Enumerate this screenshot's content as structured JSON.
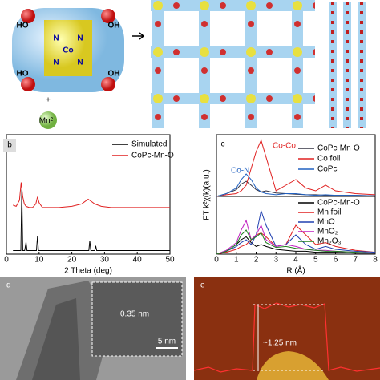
{
  "chart_data": [
    {
      "type": "line",
      "panel_label": "b",
      "xlabel": "2 Theta (deg)",
      "xlim": [
        0,
        50
      ],
      "xticks": [
        0,
        10,
        20,
        30,
        40,
        50
      ],
      "ylim": [
        0,
        100
      ],
      "series": [
        {
          "name": "Simulated",
          "color": "#000000",
          "x": [
            2,
            4.4,
            4.7,
            5.0,
            5.6,
            6.0,
            6.3,
            7,
            9.2,
            9.5,
            9.8,
            12,
            25.2,
            25.5,
            25.8,
            27,
            27.3,
            27.6,
            30,
            50
          ],
          "values": [
            3,
            3,
            54,
            3,
            3,
            10,
            3,
            3,
            3,
            15,
            3,
            3,
            3,
            11,
            3,
            3,
            7,
            3,
            3,
            3
          ]
        },
        {
          "name": "CoPc-Mn-O",
          "color": "#e02020",
          "x": [
            2,
            3,
            4,
            4.5,
            5,
            5.5,
            6,
            7,
            8,
            9,
            9.5,
            10,
            11,
            13,
            16,
            20,
            23,
            25,
            26,
            27,
            29,
            32,
            36,
            40,
            45,
            50
          ],
          "values": [
            41,
            40,
            45,
            60,
            48,
            42,
            40,
            39,
            39,
            42,
            48,
            43,
            39,
            39,
            39,
            40,
            42,
            46,
            44,
            42,
            40,
            39,
            39,
            39,
            39,
            39
          ]
        }
      ]
    },
    {
      "type": "line",
      "panel_label": "c",
      "ylabel": "FT k²χ(k)(a.u.)",
      "xlim": [
        0,
        8
      ],
      "ylim": [
        0,
        110
      ],
      "annotations": [
        {
          "text": "Co-Co",
          "color": "#e02020"
        },
        {
          "text": "Co-N",
          "color": "#2060c0"
        }
      ],
      "series": [
        {
          "name": "CoPc-Mn-O",
          "color": "#333344",
          "x": [
            0,
            0.5,
            1,
            1.25,
            1.5,
            1.75,
            2,
            2.25,
            2.5,
            3,
            3.5,
            4,
            4.5,
            5,
            5.5,
            6,
            7,
            8
          ],
          "values": [
            0,
            5,
            12,
            22,
            27,
            20,
            12,
            8,
            10,
            6,
            5,
            4,
            3,
            3,
            2,
            2,
            2,
            1
          ]
        },
        {
          "name": "Co foil",
          "color": "#e02020",
          "x": [
            0,
            0.5,
            1,
            1.25,
            1.5,
            1.75,
            2,
            2.25,
            2.5,
            3,
            3.5,
            4,
            4.5,
            5,
            5.5,
            6,
            7,
            8
          ],
          "values": [
            0,
            3,
            5,
            10,
            20,
            50,
            80,
            100,
            70,
            10,
            20,
            30,
            15,
            10,
            20,
            10,
            5,
            3
          ]
        },
        {
          "name": "CoPc",
          "color": "#2060c0",
          "x": [
            0,
            0.5,
            1,
            1.25,
            1.5,
            1.75,
            2,
            2.25,
            2.5,
            3,
            3.5,
            4,
            4.5,
            5,
            5.5,
            6,
            7,
            8
          ],
          "values": [
            0,
            5,
            15,
            30,
            40,
            30,
            15,
            8,
            5,
            3,
            5,
            5,
            3,
            2,
            3,
            2,
            2,
            1
          ]
        }
      ]
    },
    {
      "type": "line",
      "xlabel": "R (Å)",
      "xlim": [
        0,
        8
      ],
      "xticks": [
        0,
        1,
        2,
        3,
        4,
        5,
        6,
        7,
        8
      ],
      "ylim": [
        0,
        60
      ],
      "series": [
        {
          "name": "CoPc-Mn-O",
          "color": "#000000",
          "x": [
            0,
            0.5,
            1,
            1.25,
            1.5,
            1.75,
            2,
            2.25,
            2.5,
            3,
            3.5,
            4,
            4.5,
            5,
            5.5,
            6,
            7,
            8
          ],
          "values": [
            0,
            3,
            10,
            15,
            18,
            12,
            8,
            10,
            8,
            5,
            4,
            3,
            3,
            2,
            2,
            2,
            1,
            1
          ]
        },
        {
          "name": "Mn foil",
          "color": "#e02020",
          "x": [
            0,
            0.5,
            1,
            1.25,
            1.5,
            1.75,
            2,
            2.25,
            2.5,
            3,
            3.5,
            4,
            4.5,
            5,
            5.5,
            6,
            7,
            8
          ],
          "values": [
            0,
            2,
            5,
            8,
            10,
            15,
            20,
            22,
            18,
            8,
            10,
            30,
            20,
            10,
            12,
            8,
            4,
            2
          ]
        },
        {
          "name": "MnO",
          "color": "#2040b0",
          "x": [
            0,
            0.5,
            1,
            1.25,
            1.5,
            1.75,
            2,
            2.25,
            2.5,
            3,
            3.5,
            4,
            4.5,
            5,
            5.5,
            6,
            7,
            8
          ],
          "values": [
            0,
            3,
            8,
            12,
            15,
            10,
            20,
            45,
            30,
            8,
            10,
            20,
            10,
            5,
            8,
            5,
            3,
            2
          ]
        },
        {
          "name": "MnO₂",
          "color": "#c020c0",
          "x": [
            0,
            0.5,
            1,
            1.25,
            1.5,
            1.75,
            2,
            2.25,
            2.5,
            3,
            3.5,
            4,
            4.5,
            5,
            5.5,
            6,
            7,
            8
          ],
          "values": [
            0,
            4,
            12,
            25,
            35,
            15,
            20,
            30,
            15,
            8,
            10,
            8,
            5,
            4,
            4,
            3,
            2,
            1
          ]
        },
        {
          "name": "Mn₂O₃",
          "color": "#208020",
          "x": [
            0,
            0.5,
            1,
            1.25,
            1.5,
            1.75,
            2,
            2.25,
            2.5,
            3,
            3.5,
            4,
            4.5,
            5,
            5.5,
            6,
            7,
            8
          ],
          "values": [
            0,
            3,
            10,
            20,
            25,
            15,
            18,
            22,
            12,
            7,
            8,
            6,
            5,
            4,
            3,
            3,
            2,
            1
          ]
        }
      ]
    }
  ],
  "panels": {
    "a": {
      "labels": [
        "HO",
        "OH",
        "HO",
        "OH",
        "N",
        "N",
        "N",
        "N",
        "Co"
      ],
      "plus": "+",
      "ion": "Mn²⁺"
    },
    "d": {
      "panel_label": "d",
      "spacing": "0.35 nm",
      "scale_bar": "5 nm"
    },
    "e": {
      "panel_label": "e",
      "height": "~1.25 nm"
    }
  }
}
